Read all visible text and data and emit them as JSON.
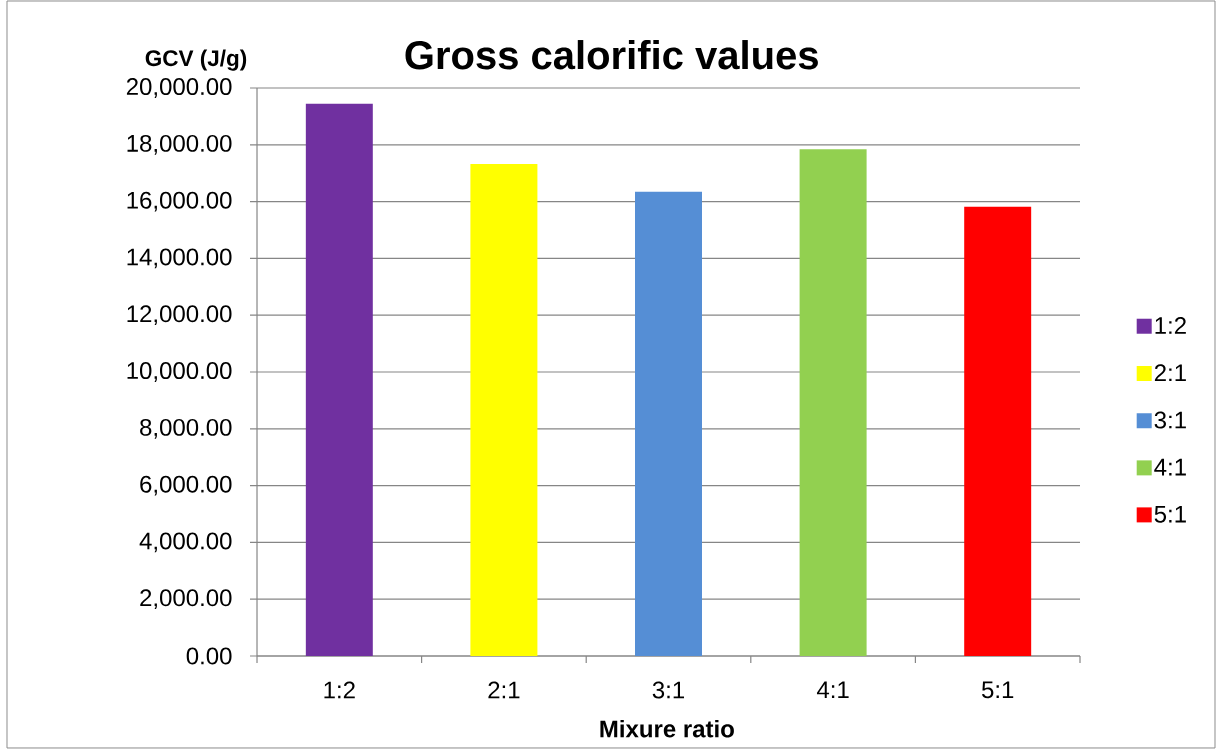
{
  "chart_data": {
    "type": "bar",
    "title": "Gross calorific values",
    "xlabel": "Mixure ratio",
    "ylabel": "GCV (J/g)",
    "categories": [
      "1:2",
      "2:1",
      "3:1",
      "4:1",
      "5:1"
    ],
    "series": [
      {
        "name": "1:2",
        "color": "#7030a0",
        "values": [
          19450,
          null,
          null,
          null,
          null
        ]
      },
      {
        "name": "2:1",
        "color": "#ffff00",
        "values": [
          null,
          17320,
          null,
          null,
          null
        ]
      },
      {
        "name": "3:1",
        "color": "#558ed5",
        "values": [
          null,
          null,
          16350,
          null,
          null
        ]
      },
      {
        "name": "4:1",
        "color": "#92d050",
        "values": [
          null,
          null,
          null,
          17840,
          null
        ]
      },
      {
        "name": "5:1",
        "color": "#ff0000",
        "values": [
          null,
          null,
          null,
          null,
          15820
        ]
      }
    ],
    "ylim": [
      0,
      20000
    ],
    "yticks": [
      {
        "value": 0,
        "label": "0.00"
      },
      {
        "value": 2000,
        "label": "2,000.00"
      },
      {
        "value": 4000,
        "label": "4,000.00"
      },
      {
        "value": 6000,
        "label": "6,000.00"
      },
      {
        "value": 8000,
        "label": "8,000.00"
      },
      {
        "value": 10000,
        "label": "10,000.00"
      },
      {
        "value": 12000,
        "label": "12,000.00"
      },
      {
        "value": 14000,
        "label": "14,000.00"
      },
      {
        "value": 16000,
        "label": "16,000.00"
      },
      {
        "value": 18000,
        "label": "18,000.00"
      },
      {
        "value": 20000,
        "label": "20,000.00"
      }
    ],
    "grid": "y",
    "legend": "right"
  }
}
